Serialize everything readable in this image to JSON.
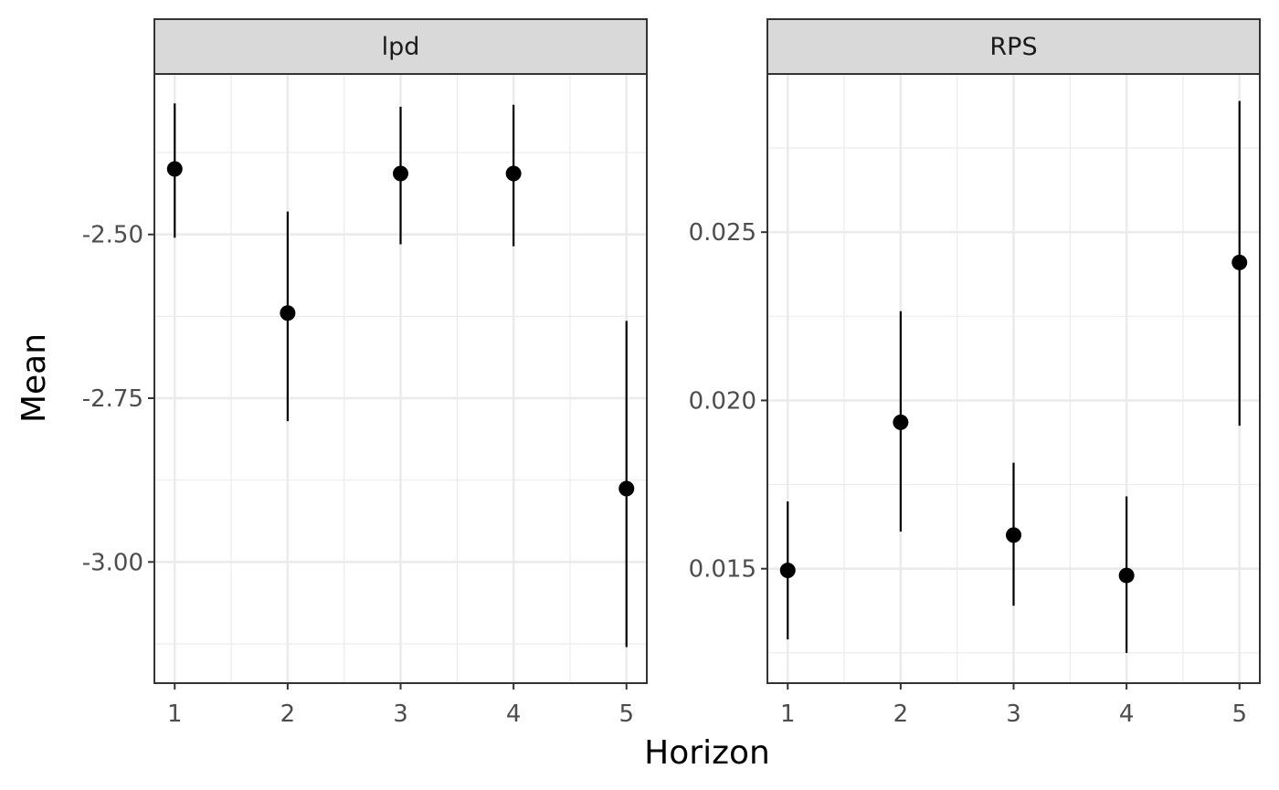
{
  "chart_data": {
    "type": "scatter",
    "xlabel": "Horizon",
    "ylabel": "Mean",
    "x_ticks": [
      1,
      2,
      3,
      4,
      5
    ],
    "panels": [
      {
        "title": "lpd",
        "ylim": [
          -3.185,
          -2.255
        ],
        "y_ticks": [
          -3.0,
          -2.75,
          -2.5
        ],
        "y_tick_labels": [
          "-3.00",
          "-2.75",
          "-2.50"
        ],
        "y_minor": [
          -3.125,
          -2.875,
          -2.625,
          -2.375
        ],
        "points": [
          {
            "x": 1,
            "y": -2.4,
            "lo": -2.505,
            "hi": -2.3
          },
          {
            "x": 2,
            "y": -2.62,
            "lo": -2.785,
            "hi": -2.465
          },
          {
            "x": 3,
            "y": -2.407,
            "lo": -2.515,
            "hi": -2.305
          },
          {
            "x": 4,
            "y": -2.407,
            "lo": -2.518,
            "hi": -2.302
          },
          {
            "x": 5,
            "y": -2.888,
            "lo": -3.13,
            "hi": -2.632
          }
        ]
      },
      {
        "title": "RPS",
        "ylim": [
          0.0116,
          0.0297
        ],
        "y_ticks": [
          0.015,
          0.02,
          0.025
        ],
        "y_tick_labels": [
          "0.015",
          "0.020",
          "0.025"
        ],
        "y_minor": [
          0.0125,
          0.0175,
          0.0225,
          0.0275
        ],
        "points": [
          {
            "x": 1,
            "y": 0.01495,
            "lo": 0.0129,
            "hi": 0.017
          },
          {
            "x": 2,
            "y": 0.01935,
            "lo": 0.0161,
            "hi": 0.02265
          },
          {
            "x": 3,
            "y": 0.016,
            "lo": 0.0139,
            "hi": 0.01815
          },
          {
            "x": 4,
            "y": 0.0148,
            "lo": 0.0125,
            "hi": 0.01715
          },
          {
            "x": 5,
            "y": 0.0241,
            "lo": 0.01925,
            "hi": 0.0289
          }
        ]
      }
    ]
  }
}
